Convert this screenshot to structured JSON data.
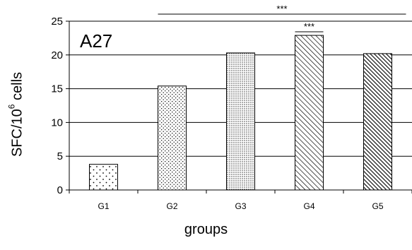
{
  "chart_data": {
    "type": "bar",
    "panel_label": "A27",
    "categories": [
      "G1",
      "G2",
      "G3",
      "G4",
      "G5"
    ],
    "values": [
      3.8,
      15.4,
      20.3,
      22.9,
      20.2
    ],
    "patterns": [
      "sparse-dots",
      "dots",
      "dense-dots",
      "diagonal-hatch",
      "dense-diagonal-hatch"
    ],
    "xlabel": "groups",
    "ylabel": {
      "prefix": "SFC/10",
      "superscript": "6",
      "suffix": " cells"
    },
    "ylim": [
      0,
      25
    ],
    "yticks": [
      0,
      5,
      10,
      15,
      20,
      25
    ],
    "grid": true,
    "legend": "none",
    "significance": [
      {
        "label": "***",
        "from": "G2",
        "to": "G5",
        "level": 26.0
      },
      {
        "label": "***",
        "from": "G4",
        "to": "G4",
        "level": 23.5
      }
    ],
    "colors": {
      "bar_fill": "#ffffff",
      "pattern": "#000000",
      "grid": "#000000"
    }
  }
}
